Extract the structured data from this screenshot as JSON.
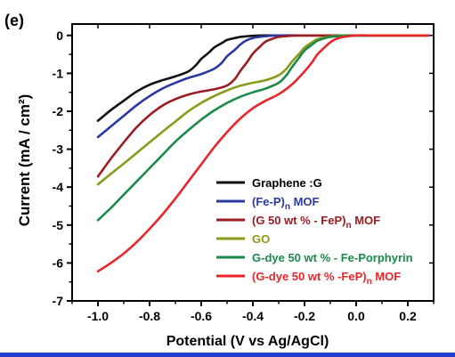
{
  "chart_data": {
    "type": "line",
    "panel_label": "(e)",
    "title": "",
    "xlabel": "Potential (V vs Ag/AgCl)",
    "ylabel": "Current (mA / cm²)",
    "xlim": [
      -1.1,
      0.3
    ],
    "ylim": [
      -7,
      0.3
    ],
    "x_ticks": [
      -1.0,
      -0.8,
      -0.6,
      -0.4,
      -0.2,
      0.0,
      0.2
    ],
    "x_tick_labels": [
      "-1.0",
      "-0.8",
      "-0.6",
      "-0.4",
      "-0.2",
      "0.0",
      "0.2"
    ],
    "y_ticks": [
      0,
      -1,
      -2,
      -3,
      -4,
      -5,
      -6,
      -7
    ],
    "y_tick_labels": [
      "0",
      "-1",
      "-2",
      "-3",
      "-4",
      "-5",
      "-6",
      "-7"
    ],
    "grid": false,
    "legend_position": "bottom-right",
    "series": [
      {
        "name": "Graphene :G",
        "color": "#111111",
        "x": [
          -1.0,
          -0.95,
          -0.9,
          -0.85,
          -0.8,
          -0.75,
          -0.7,
          -0.65,
          -0.62,
          -0.6,
          -0.57,
          -0.55,
          -0.52,
          -0.5,
          -0.47,
          -0.45,
          -0.42,
          -0.4,
          -0.35,
          -0.3,
          -0.2,
          -0.1,
          0.0,
          0.1,
          0.2,
          0.28
        ],
        "y": [
          -2.25,
          -1.97,
          -1.72,
          -1.48,
          -1.3,
          -1.18,
          -1.08,
          -0.95,
          -0.78,
          -0.62,
          -0.45,
          -0.32,
          -0.2,
          -0.12,
          -0.07,
          -0.04,
          -0.02,
          -0.01,
          0.0,
          0.0,
          0.0,
          0.0,
          0.0,
          0.0,
          0.0,
          0.0
        ]
      },
      {
        "name": "(Fe-P)n MOF",
        "name_main": "(Fe-P)",
        "name_sub": "n",
        "name_tail": " MOF",
        "color": "#2b3aa0",
        "x": [
          -1.0,
          -0.95,
          -0.9,
          -0.85,
          -0.8,
          -0.75,
          -0.7,
          -0.65,
          -0.6,
          -0.55,
          -0.52,
          -0.5,
          -0.47,
          -0.45,
          -0.43,
          -0.4,
          -0.35,
          -0.3,
          -0.2,
          -0.1,
          0.0,
          0.1,
          0.2,
          0.28
        ],
        "y": [
          -2.68,
          -2.4,
          -2.12,
          -1.84,
          -1.6,
          -1.4,
          -1.25,
          -1.12,
          -1.02,
          -0.88,
          -0.72,
          -0.55,
          -0.38,
          -0.25,
          -0.15,
          -0.07,
          -0.02,
          0.0,
          0.0,
          0.0,
          0.0,
          0.0,
          0.0,
          0.0
        ]
      },
      {
        "name": "(G 50 wt % - FeP)n MOF",
        "name_main": "(G 50 wt % - FeP)",
        "name_sub": "n",
        "name_tail": " MOF",
        "color": "#9b1c22",
        "x": [
          -1.0,
          -0.95,
          -0.9,
          -0.85,
          -0.8,
          -0.75,
          -0.7,
          -0.65,
          -0.6,
          -0.55,
          -0.5,
          -0.47,
          -0.45,
          -0.42,
          -0.4,
          -0.37,
          -0.35,
          -0.32,
          -0.3,
          -0.25,
          -0.2,
          -0.1,
          0.0,
          0.1,
          0.2,
          0.28
        ],
        "y": [
          -3.72,
          -3.25,
          -2.82,
          -2.42,
          -2.1,
          -1.85,
          -1.68,
          -1.56,
          -1.48,
          -1.42,
          -1.32,
          -1.15,
          -0.95,
          -0.68,
          -0.48,
          -0.28,
          -0.16,
          -0.08,
          -0.04,
          -0.01,
          0.0,
          0.0,
          0.0,
          0.0,
          0.0,
          0.0
        ]
      },
      {
        "name": "GO",
        "color": "#8a9a1a",
        "x": [
          -1.0,
          -0.95,
          -0.9,
          -0.85,
          -0.8,
          -0.75,
          -0.7,
          -0.65,
          -0.6,
          -0.55,
          -0.5,
          -0.45,
          -0.4,
          -0.35,
          -0.3,
          -0.27,
          -0.25,
          -0.22,
          -0.2,
          -0.17,
          -0.15,
          -0.1,
          -0.05,
          0.0,
          0.1,
          0.2,
          0.28
        ],
        "y": [
          -3.93,
          -3.65,
          -3.38,
          -3.1,
          -2.82,
          -2.54,
          -2.27,
          -2.0,
          -1.78,
          -1.6,
          -1.45,
          -1.33,
          -1.25,
          -1.18,
          -1.05,
          -0.88,
          -0.7,
          -0.48,
          -0.32,
          -0.18,
          -0.1,
          -0.03,
          0.0,
          0.0,
          0.0,
          0.0,
          0.0
        ]
      },
      {
        "name": "G-dye 50 wt % - Fe-Porphyrin",
        "color": "#1a8a4a",
        "x": [
          -1.0,
          -0.95,
          -0.9,
          -0.85,
          -0.8,
          -0.75,
          -0.7,
          -0.65,
          -0.6,
          -0.55,
          -0.5,
          -0.45,
          -0.4,
          -0.35,
          -0.3,
          -0.27,
          -0.25,
          -0.22,
          -0.2,
          -0.17,
          -0.15,
          -0.12,
          -0.1,
          -0.05,
          0.0,
          0.1,
          0.2,
          0.28
        ],
        "y": [
          -4.87,
          -4.55,
          -4.2,
          -3.85,
          -3.5,
          -3.15,
          -2.8,
          -2.5,
          -2.22,
          -1.98,
          -1.78,
          -1.62,
          -1.5,
          -1.4,
          -1.25,
          -1.05,
          -0.85,
          -0.58,
          -0.4,
          -0.24,
          -0.14,
          -0.07,
          -0.04,
          -0.01,
          0.0,
          0.0,
          0.0,
          0.0
        ]
      },
      {
        "name": "(G-dye 50 wt % -FeP)n MOF",
        "name_main": "(G-dye 50 wt % -FeP)",
        "name_sub": "n",
        "name_tail": " MOF",
        "color": "#e8262a",
        "x": [
          -1.0,
          -0.95,
          -0.9,
          -0.85,
          -0.8,
          -0.75,
          -0.7,
          -0.65,
          -0.6,
          -0.55,
          -0.5,
          -0.45,
          -0.4,
          -0.35,
          -0.3,
          -0.25,
          -0.2,
          -0.17,
          -0.15,
          -0.12,
          -0.1,
          -0.08,
          -0.05,
          0.0,
          0.05,
          0.1,
          0.2,
          0.28
        ],
        "y": [
          -6.22,
          -6.0,
          -5.75,
          -5.45,
          -5.1,
          -4.72,
          -4.3,
          -3.85,
          -3.4,
          -2.95,
          -2.55,
          -2.2,
          -1.92,
          -1.72,
          -1.55,
          -1.3,
          -0.95,
          -0.7,
          -0.5,
          -0.3,
          -0.18,
          -0.1,
          -0.04,
          0.0,
          0.0,
          0.0,
          0.0,
          0.0
        ]
      }
    ]
  }
}
